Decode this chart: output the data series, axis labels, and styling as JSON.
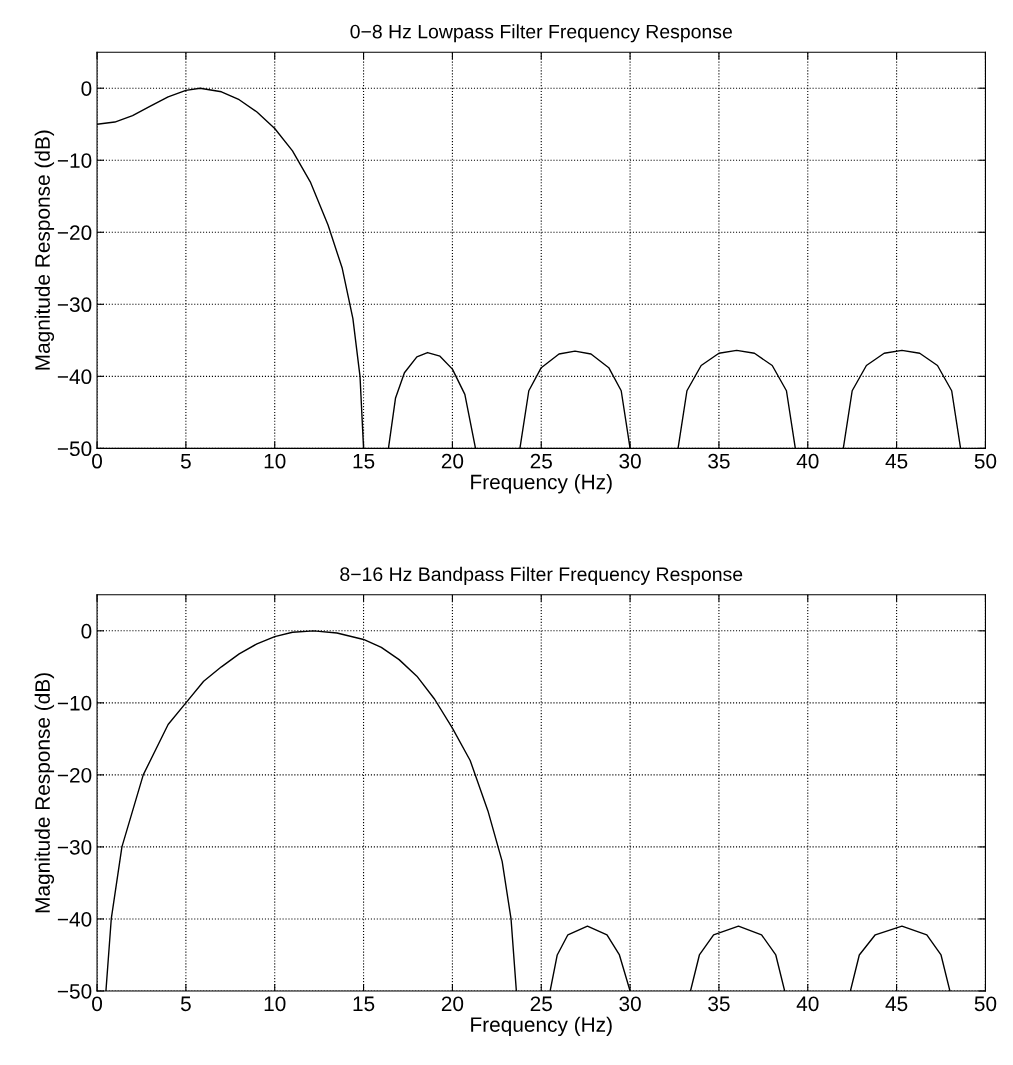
{
  "chart_data": [
    {
      "type": "line",
      "title": "0−8 Hz Lowpass Filter Frequency Response",
      "xlabel": "Frequency (Hz)",
      "ylabel": "Magnitude Response (dB)",
      "series": [
        {
          "color": "#000000",
          "x": [
            0,
            1,
            2,
            3,
            4,
            5,
            5.8,
            7,
            8,
            9,
            10,
            11,
            12,
            13,
            13.8,
            14.4,
            14.8,
            15,
            15.7,
            16.4,
            16.8,
            17.3,
            18,
            18.6,
            19.3,
            20,
            20.7,
            21.3,
            22.5,
            23.8,
            24.3,
            25,
            26,
            26.9,
            27.8,
            28.8,
            29.5,
            30,
            31.3,
            32.7,
            33.2,
            34,
            35,
            36,
            37,
            38,
            38.8,
            39.3,
            40.6,
            42,
            42.5,
            43.3,
            44.3,
            45.3,
            46.3,
            47.3,
            48.1,
            48.6
          ],
          "values": [
            -5,
            -4.7,
            -3.8,
            -2.5,
            -1.2,
            -0.3,
            0,
            -0.5,
            -1.6,
            -3.3,
            -5.6,
            -8.7,
            -13,
            -19,
            -25,
            -32,
            -40,
            -50,
            null,
            -50,
            -43,
            -39.5,
            -37.3,
            -36.7,
            -37.2,
            -39,
            -42.5,
            -50,
            null,
            -50,
            -42,
            -38.8,
            -36.9,
            -36.5,
            -36.9,
            -38.8,
            -42,
            -50,
            null,
            -50,
            -42,
            -38.5,
            -36.8,
            -36.4,
            -36.8,
            -38.5,
            -42,
            -50,
            null,
            -50,
            -42,
            -38.5,
            -36.8,
            -36.4,
            -36.8,
            -38.5,
            -42,
            -50
          ]
        }
      ],
      "xlim": [
        0,
        50
      ],
      "ylim": [
        -50,
        5
      ],
      "xticks": [
        0,
        5,
        10,
        15,
        20,
        25,
        30,
        35,
        40,
        45,
        50
      ],
      "yticks": [
        {
          "value": -50,
          "label": "−50"
        },
        {
          "value": -40,
          "label": "−40"
        },
        {
          "value": -30,
          "label": "−30"
        },
        {
          "value": -20,
          "label": "−20"
        },
        {
          "value": -10,
          "label": "−10"
        },
        0
      ],
      "grid": true,
      "line_style": "solid",
      "marker": "none"
    },
    {
      "type": "line",
      "title": "8−16 Hz Bandpass Filter Frequency Response",
      "xlabel": "Frequency (Hz)",
      "ylabel": "Magnitude Response (dB)",
      "series": [
        {
          "color": "#000000",
          "x": [
            0.5,
            0.8,
            1.4,
            2.6,
            4,
            5,
            6,
            7,
            8,
            9,
            10,
            11,
            12.2,
            13.5,
            15,
            16,
            17,
            18,
            19,
            20,
            21,
            22,
            22.8,
            23.3,
            23.6,
            24.5,
            25.5,
            25.9,
            26.5,
            27.6,
            28.7,
            29.4,
            30,
            31.7,
            33.4,
            33.9,
            34.7,
            36.1,
            37.4,
            38.2,
            38.7,
            40.5,
            42.4,
            42.9,
            43.8,
            45.3,
            46.7,
            47.5,
            48
          ],
          "values": [
            -50,
            -40,
            -30,
            -20,
            -13,
            -10,
            -7,
            -5,
            -3.2,
            -1.8,
            -0.8,
            -0.2,
            0,
            -0.3,
            -1.2,
            -2.3,
            -4,
            -6.3,
            -9.5,
            -13.5,
            -18,
            -25,
            -32,
            -40,
            -50,
            null,
            -50,
            -45,
            -42.2,
            -41,
            -42.2,
            -45,
            -50,
            null,
            -50,
            -45,
            -42.2,
            -41,
            -42.2,
            -45,
            -50,
            null,
            -50,
            -45,
            -42.2,
            -41,
            -42.2,
            -45,
            -50
          ]
        }
      ],
      "xlim": [
        0,
        50
      ],
      "ylim": [
        -50,
        5
      ],
      "xticks": [
        0,
        5,
        10,
        15,
        20,
        25,
        30,
        35,
        40,
        45,
        50
      ],
      "yticks": [
        {
          "value": -50,
          "label": "−50"
        },
        {
          "value": -40,
          "label": "−40"
        },
        {
          "value": -30,
          "label": "−30"
        },
        {
          "value": -20,
          "label": "−20"
        },
        {
          "value": -10,
          "label": "−10"
        },
        0
      ],
      "grid": true,
      "line_style": "solid",
      "marker": "none"
    }
  ]
}
